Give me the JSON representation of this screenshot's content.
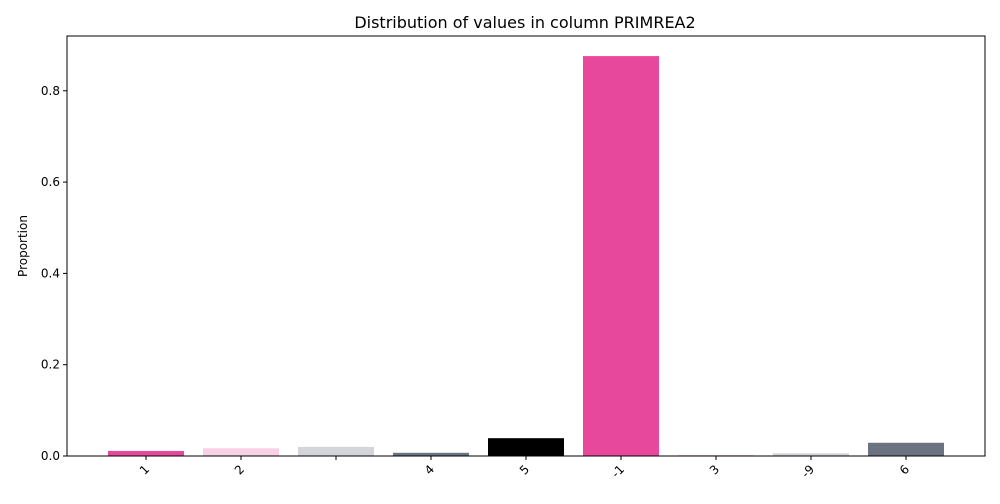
{
  "chart_data": {
    "type": "bar",
    "title": "Distribution of values in column PRIMREA2",
    "xlabel": "",
    "ylabel": "Proportion",
    "categories": [
      "1",
      "2",
      "",
      "4",
      "5",
      "-1",
      "3",
      "-9",
      "6"
    ],
    "values": [
      0.011,
      0.017,
      0.02,
      0.007,
      0.039,
      0.876,
      0.002,
      0.006,
      0.029
    ],
    "colors": [
      "#e8489c",
      "#f9d1e6",
      "#d3d5da",
      "#6b7280",
      "#000000",
      "#e8489c",
      "#f9d1e6",
      "#d3d5da",
      "#6b7280"
    ],
    "ylim": [
      0,
      0.92
    ],
    "yticks": [
      "0.0",
      "0.2",
      "0.4",
      "0.6",
      "0.8"
    ],
    "grid": false,
    "legend": "none"
  }
}
